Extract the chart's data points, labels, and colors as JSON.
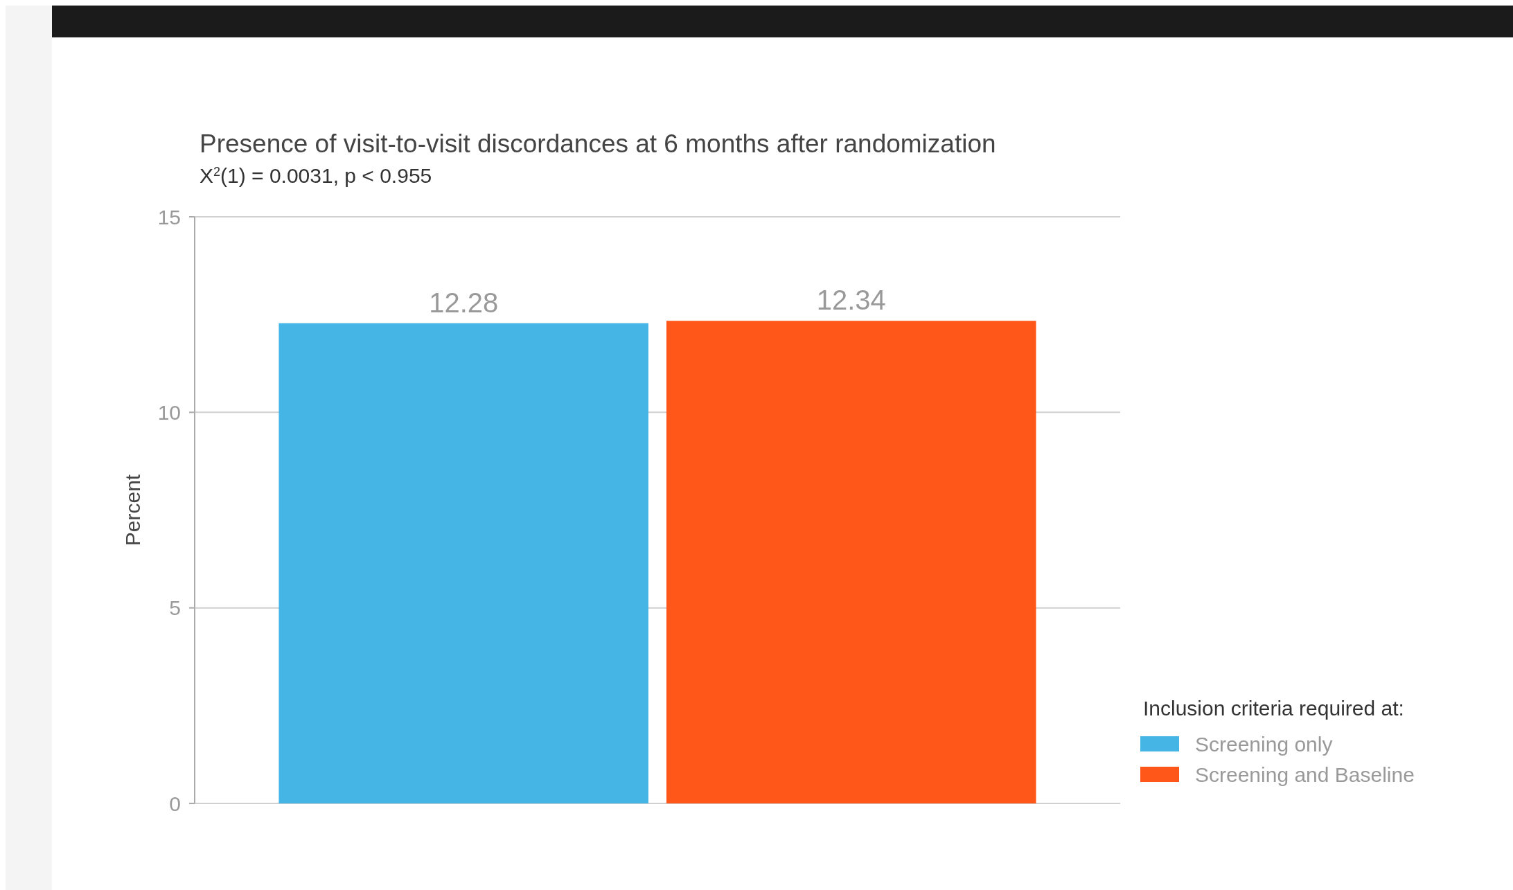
{
  "chart_data": {
    "type": "bar",
    "title": "Presence of visit-to-visit discordances at 6 months after randomization",
    "subtitle": "X$^{2}$(1) = 0.0031, p < 0.955",
    "ylabel": "Percent",
    "legend_title": "Inclusion criteria required at:",
    "categories": [
      null
    ],
    "series": [
      {
        "name": "Screening only",
        "color": "#45b5e5",
        "values": [
          12.28
        ]
      },
      {
        "name": "Screening and Baseline",
        "color": "#ff5719",
        "values": [
          12.34
        ]
      }
    ],
    "ylim": [
      0,
      15
    ],
    "yticks": [
      0,
      5,
      10,
      15
    ],
    "grid": "y",
    "legend": "right",
    "data_labels": true
  }
}
